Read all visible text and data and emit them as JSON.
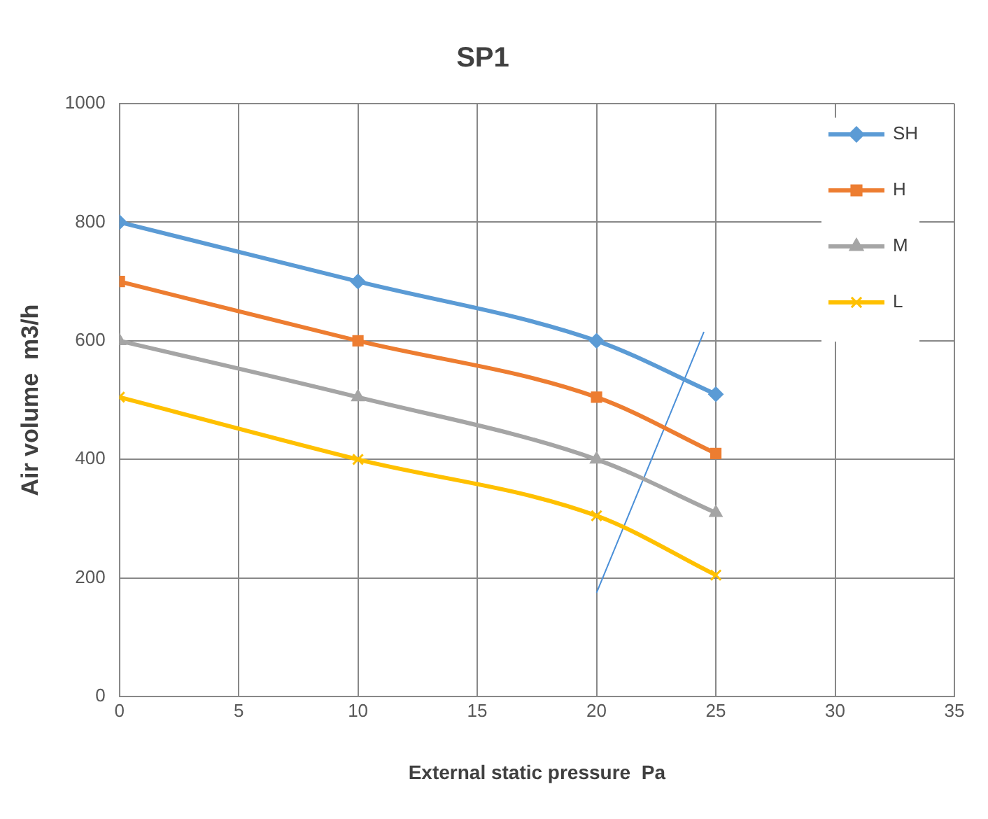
{
  "chart_data": {
    "type": "line",
    "title": "SP1",
    "xlabel": "External static pressure  Pa",
    "ylabel": "Air volume  m3/h",
    "x": [
      0,
      10,
      20,
      25
    ],
    "series": [
      {
        "name": "SH",
        "color": "#5b9bd5",
        "marker": "diamond",
        "values": [
          800,
          700,
          600,
          510
        ]
      },
      {
        "name": "H",
        "color": "#ed7d31",
        "marker": "square",
        "values": [
          700,
          600,
          505,
          410
        ]
      },
      {
        "name": "M",
        "color": "#a5a5a5",
        "marker": "triangle",
        "values": [
          600,
          505,
          400,
          310
        ]
      },
      {
        "name": "L",
        "color": "#ffc000",
        "marker": "cross",
        "values": [
          505,
          400,
          305,
          205
        ]
      },
      {
        "color": "#4a8fd8",
        "marker": "none",
        "x": [
          20,
          24.5
        ],
        "values": [
          175,
          615
        ]
      }
    ],
    "xlim": [
      0,
      35
    ],
    "xticks": [
      0,
      5,
      10,
      15,
      20,
      25,
      30,
      35
    ],
    "ylim": [
      0,
      1000
    ],
    "yticks": [
      0,
      200,
      400,
      600,
      800,
      1000
    ],
    "grid": true,
    "legend": "top right"
  }
}
